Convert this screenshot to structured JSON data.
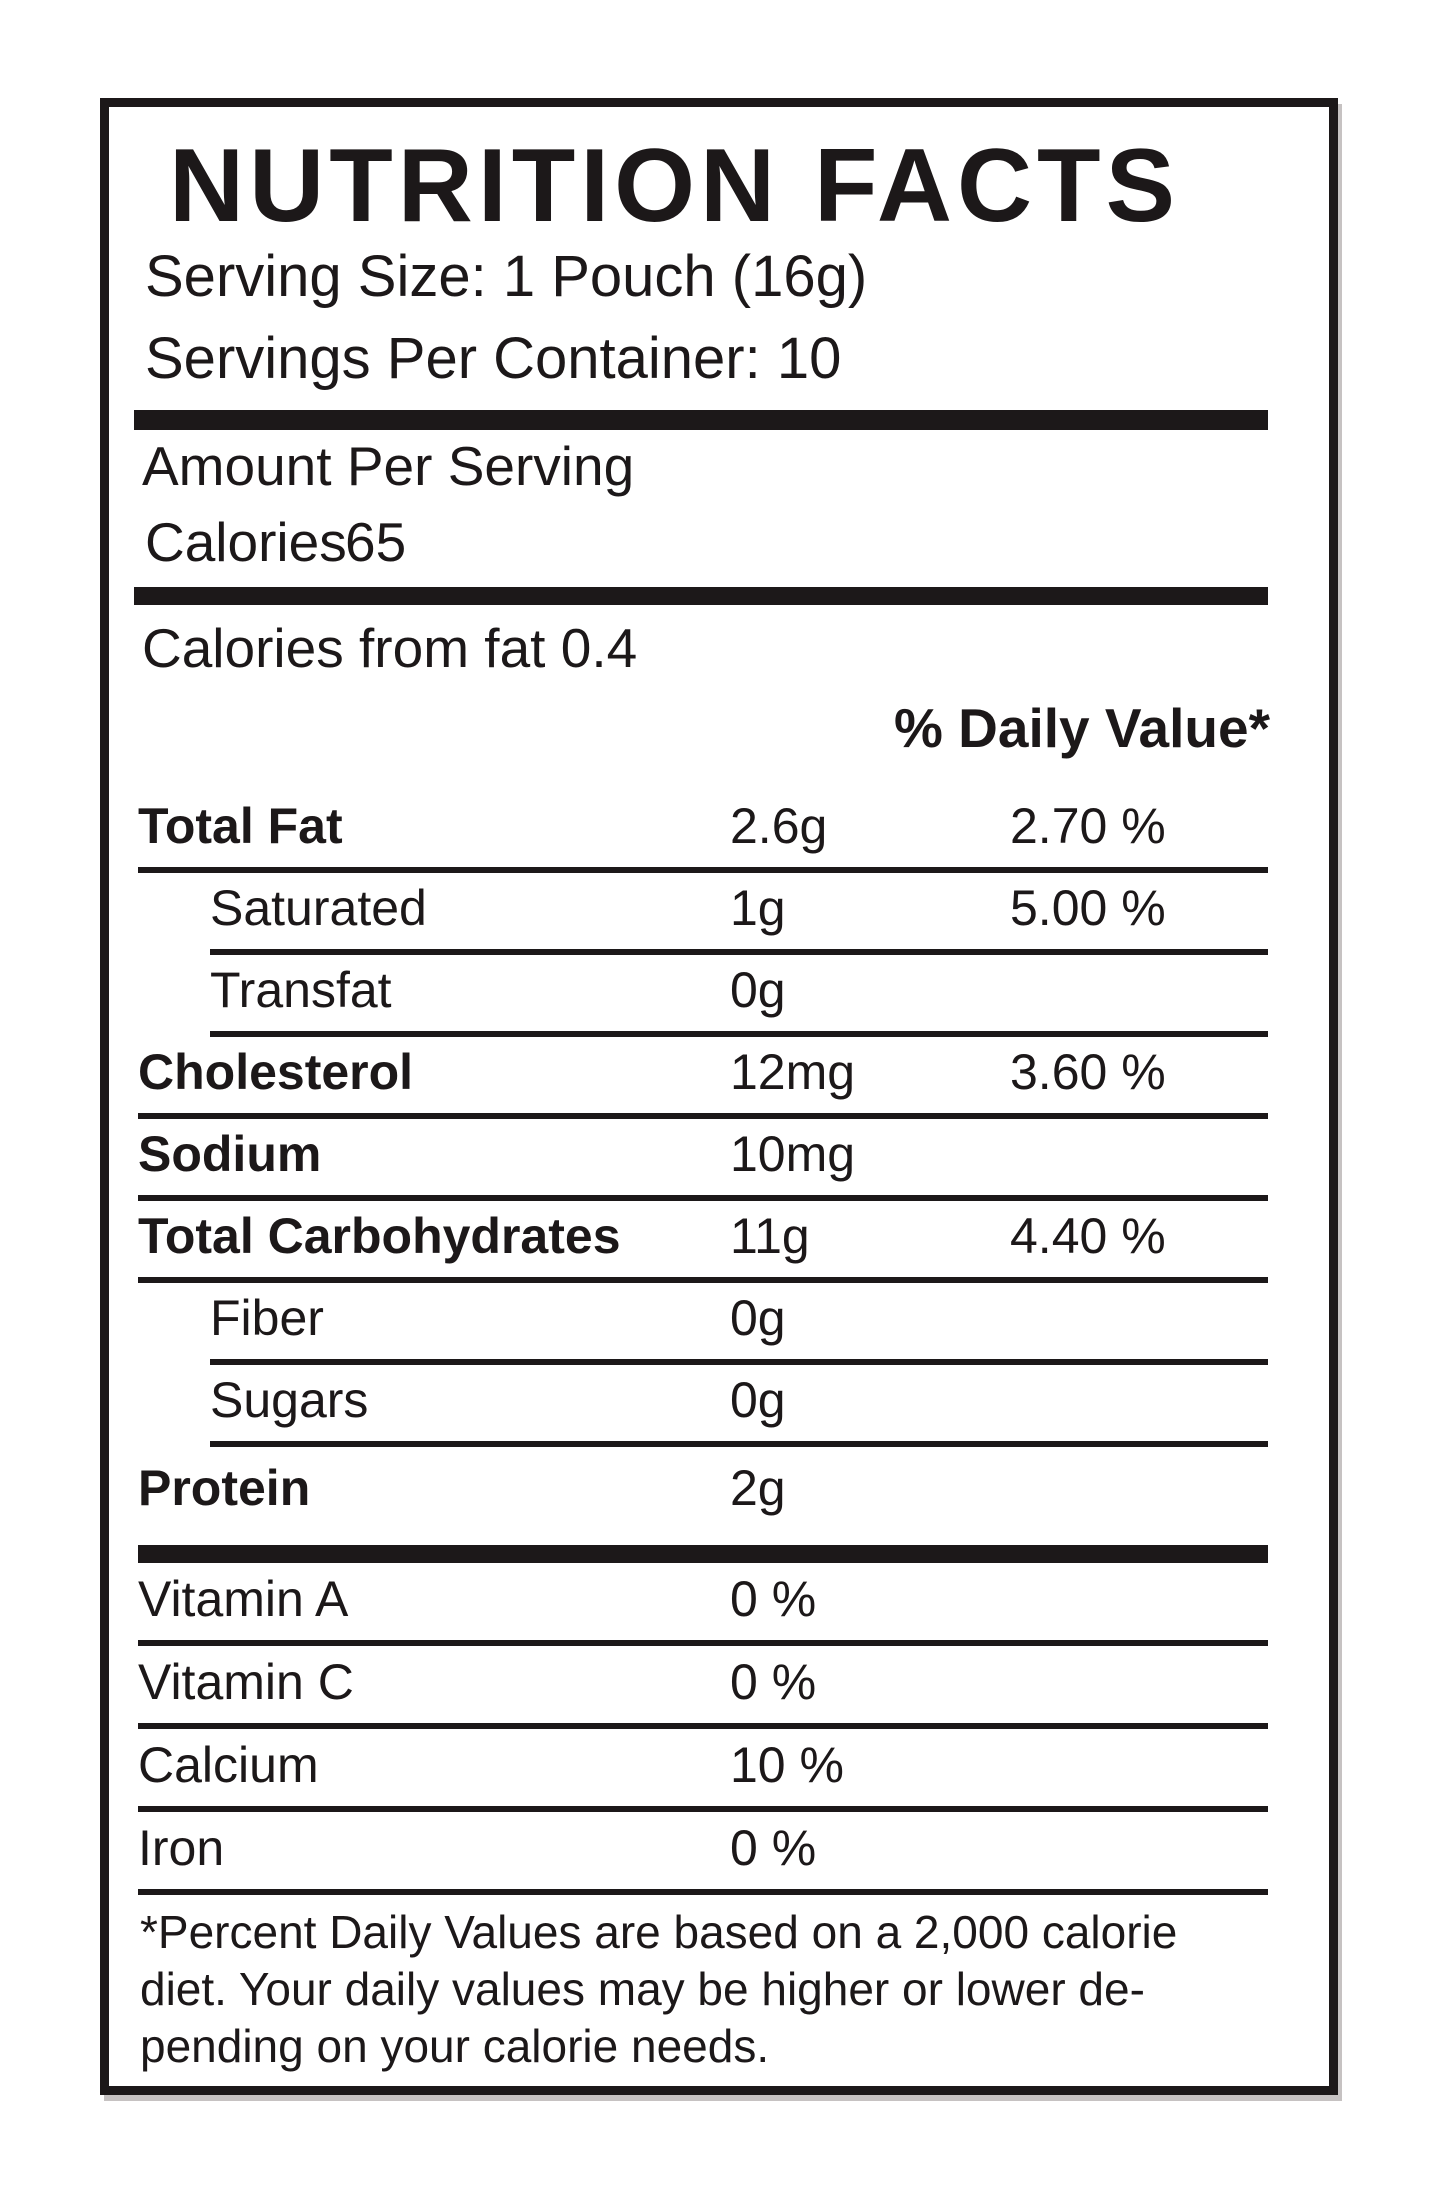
{
  "colors": {
    "ink": "#1c1819",
    "paper": "#ffffff"
  },
  "header": {
    "title": "NUTRITION FACTS",
    "serving_size": "Serving Size: 1 Pouch (16g)",
    "servings_per_container": "Servings Per Container: 10",
    "amount_per_serving": "Amount Per Serving",
    "calories_label": "Calories",
    "calories_value": "65",
    "calories_from_fat": "Calories from fat 0.4",
    "daily_value_header": "% Daily Value*"
  },
  "nutrients": [
    {
      "label": "Total Fat",
      "amount": "2.6g",
      "daily_value": "2.70 %"
    },
    {
      "label": "Saturated",
      "amount": "1g",
      "daily_value": "5.00 %"
    },
    {
      "label": "Transfat",
      "amount": "0g",
      "daily_value": ""
    },
    {
      "label": "Cholesterol",
      "amount": "12mg",
      "daily_value": "3.60 %"
    },
    {
      "label": "Sodium",
      "amount": "10mg",
      "daily_value": ""
    },
    {
      "label": "Total Carbohydrates",
      "amount": "11g",
      "daily_value": "4.40 %"
    },
    {
      "label": "Fiber",
      "amount": "0g",
      "daily_value": ""
    },
    {
      "label": "Sugars",
      "amount": "0g",
      "daily_value": ""
    },
    {
      "label": "Protein",
      "amount": "2g",
      "daily_value": ""
    }
  ],
  "vitamins": [
    {
      "label": "Vitamin A",
      "amount": "0 %"
    },
    {
      "label": "Vitamin C",
      "amount": "0 %"
    },
    {
      "label": "Calcium",
      "amount": "10 %"
    },
    {
      "label": "Iron",
      "amount": "0 %"
    }
  ],
  "footnote": {
    "line1": "*Percent Daily Values are based on a 2,000 calorie",
    "line2": "diet. Your daily values may be higher or lower de-",
    "line3": "pending on your calorie needs."
  }
}
